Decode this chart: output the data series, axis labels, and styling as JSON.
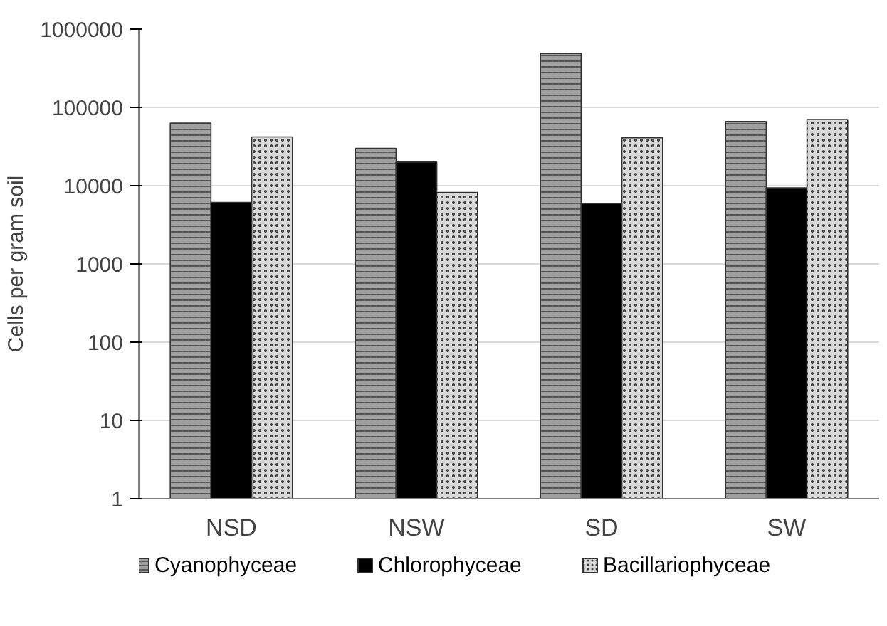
{
  "chart_data": {
    "type": "bar",
    "ylabel": "Cells per gram soil",
    "categories": [
      "NSD",
      "NSW",
      "SD",
      "SW"
    ],
    "series": [
      {
        "name": "Cyanophyceae",
        "color": "#a0a0a0",
        "values": [
          63000,
          30000,
          490000,
          66000
        ]
      },
      {
        "name": "Chlorophyceae",
        "color": "#000000",
        "values": [
          6100,
          20000,
          5900,
          9400
        ]
      },
      {
        "name": "Bacillariophyceae",
        "color": "#d8d8d8",
        "values": [
          42000,
          8200,
          41000,
          70000
        ]
      }
    ],
    "log": "y",
    "ylim": [
      1,
      1000000
    ],
    "yticks": [
      1,
      10,
      100,
      1000,
      10000,
      100000,
      1000000
    ],
    "grid": "y",
    "legend": "bottom"
  }
}
